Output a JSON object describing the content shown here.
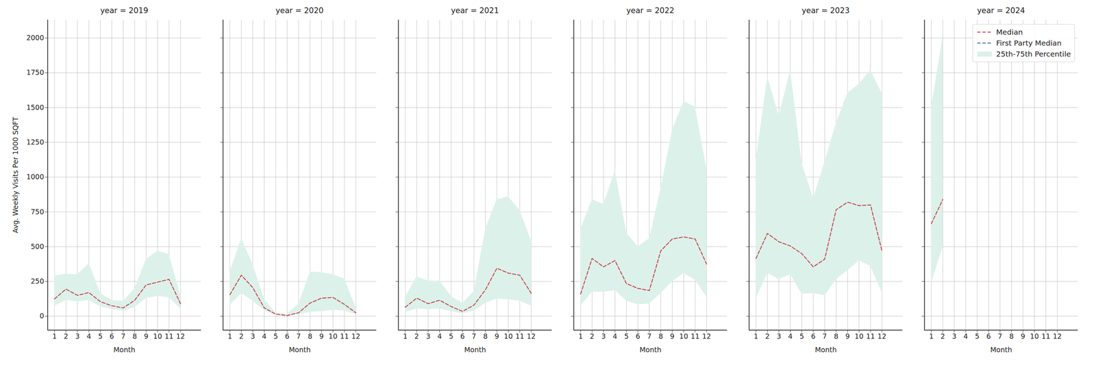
{
  "chart_data": [
    {
      "type": "line",
      "title": "year = 2019",
      "x_label": "Month",
      "y_label": "Avg. Weekly Visits Per 1000 SQFT",
      "x": [
        1,
        2,
        3,
        4,
        5,
        6,
        7,
        8,
        9,
        10,
        11,
        12
      ],
      "xlim": [
        0.4,
        13.8
      ],
      "xticks": [
        1,
        2,
        3,
        4,
        5,
        6,
        7,
        8,
        9,
        10,
        11,
        12
      ],
      "ylim": [
        -100,
        2130
      ],
      "yticks": [
        0,
        250,
        500,
        750,
        1000,
        1250,
        1500,
        1750,
        2000
      ],
      "grid": true,
      "series": [
        {
          "name": "Median",
          "color": "#c44e52",
          "line_style": "dashed",
          "values": [
            125,
            195,
            150,
            170,
            105,
            75,
            60,
            115,
            225,
            245,
            265,
            90
          ]
        },
        {
          "name": "First Party Median",
          "color": "#4c72b0",
          "line_style": "dashed",
          "values": [
            null,
            null,
            null,
            null,
            null,
            null,
            null,
            null,
            null,
            null,
            null,
            null
          ]
        },
        {
          "name": "25th-75th Percentile",
          "type": "area",
          "color": "#ddf1eb",
          "low": [
            75,
            115,
            105,
            115,
            70,
            50,
            40,
            65,
            130,
            145,
            135,
            55
          ],
          "high": [
            290,
            305,
            300,
            380,
            165,
            115,
            110,
            200,
            410,
            470,
            445,
            150
          ]
        }
      ]
    },
    {
      "type": "line",
      "title": "year = 2020",
      "x_label": "Month",
      "tick_labels": "x",
      "x": [
        1,
        2,
        3,
        4,
        5,
        6,
        7,
        8,
        9,
        10,
        11,
        12
      ],
      "xlim": [
        0.4,
        13.8
      ],
      "xticks": [
        1,
        2,
        3,
        4,
        5,
        6,
        7,
        8,
        9,
        10,
        11,
        12
      ],
      "ylim": [
        -100,
        2130
      ],
      "yticks": [
        0,
        250,
        500,
        750,
        1000,
        1250,
        1500,
        1750,
        2000
      ],
      "grid": true,
      "series": [
        {
          "name": "Median",
          "color": "#c44e52",
          "line_style": "dashed",
          "values": [
            155,
            295,
            205,
            60,
            15,
            5,
            25,
            95,
            130,
            135,
            85,
            25
          ]
        },
        {
          "name": "First Party Median",
          "color": "#4c72b0",
          "line_style": "dashed",
          "values": [
            null,
            null,
            null,
            null,
            null,
            null,
            null,
            null,
            null,
            null,
            null,
            null
          ]
        },
        {
          "name": "25th-75th Percentile",
          "type": "area",
          "color": "#ddf1eb",
          "low": [
            80,
            165,
            110,
            40,
            10,
            3,
            15,
            30,
            35,
            45,
            40,
            15
          ],
          "high": [
            320,
            560,
            370,
            120,
            25,
            15,
            90,
            320,
            315,
            300,
            270,
            60
          ]
        }
      ]
    },
    {
      "type": "line",
      "title": "year = 2021",
      "x_label": "Month",
      "tick_labels": "x",
      "x": [
        1,
        2,
        3,
        4,
        5,
        6,
        7,
        8,
        9,
        10,
        11,
        12
      ],
      "xlim": [
        0.4,
        13.8
      ],
      "xticks": [
        1,
        2,
        3,
        4,
        5,
        6,
        7,
        8,
        9,
        10,
        11,
        12
      ],
      "ylim": [
        -100,
        2130
      ],
      "yticks": [
        0,
        250,
        500,
        750,
        1000,
        1250,
        1500,
        1750,
        2000
      ],
      "grid": true,
      "series": [
        {
          "name": "Median",
          "color": "#c44e52",
          "line_style": "dashed",
          "values": [
            65,
            130,
            90,
            115,
            70,
            35,
            80,
            190,
            345,
            310,
            295,
            165
          ]
        },
        {
          "name": "First Party Median",
          "color": "#4c72b0",
          "line_style": "dashed",
          "values": [
            null,
            null,
            null,
            null,
            null,
            null,
            null,
            null,
            null,
            null,
            null,
            null
          ]
        },
        {
          "name": "25th-75th Percentile",
          "type": "area",
          "color": "#ddf1eb",
          "low": [
            30,
            55,
            50,
            55,
            35,
            20,
            40,
            95,
            125,
            120,
            110,
            75
          ],
          "high": [
            140,
            285,
            255,
            255,
            145,
            95,
            180,
            630,
            840,
            860,
            760,
            540
          ]
        }
      ]
    },
    {
      "type": "line",
      "title": "year = 2022",
      "x_label": "Month",
      "tick_labels": "x",
      "x": [
        1,
        2,
        3,
        4,
        5,
        6,
        7,
        8,
        9,
        10,
        11,
        12
      ],
      "xlim": [
        0.4,
        13.8
      ],
      "xticks": [
        1,
        2,
        3,
        4,
        5,
        6,
        7,
        8,
        9,
        10,
        11,
        12
      ],
      "ylim": [
        -100,
        2130
      ],
      "yticks": [
        0,
        250,
        500,
        750,
        1000,
        1250,
        1500,
        1750,
        2000
      ],
      "grid": true,
      "series": [
        {
          "name": "Median",
          "color": "#c44e52",
          "line_style": "dashed",
          "values": [
            160,
            415,
            355,
            400,
            235,
            200,
            185,
            470,
            555,
            570,
            555,
            375
          ]
        },
        {
          "name": "First Party Median",
          "color": "#4c72b0",
          "line_style": "dashed",
          "values": [
            null,
            null,
            null,
            null,
            null,
            null,
            null,
            null,
            null,
            null,
            null,
            null
          ]
        },
        {
          "name": "25th-75th Percentile",
          "type": "area",
          "color": "#ddf1eb",
          "low": [
            75,
            175,
            175,
            185,
            110,
            85,
            90,
            165,
            250,
            310,
            260,
            140
          ],
          "high": [
            630,
            840,
            805,
            1050,
            600,
            500,
            560,
            920,
            1340,
            1545,
            1505,
            1060
          ]
        }
      ]
    },
    {
      "type": "line",
      "title": "year = 2023",
      "x_label": "Month",
      "tick_labels": "x",
      "x": [
        1,
        2,
        3,
        4,
        5,
        6,
        7,
        8,
        9,
        10,
        11,
        12
      ],
      "xlim": [
        0.4,
        13.8
      ],
      "xticks": [
        1,
        2,
        3,
        4,
        5,
        6,
        7,
        8,
        9,
        10,
        11,
        12
      ],
      "ylim": [
        -100,
        2130
      ],
      "yticks": [
        0,
        250,
        500,
        750,
        1000,
        1250,
        1500,
        1750,
        2000
      ],
      "grid": true,
      "series": [
        {
          "name": "Median",
          "color": "#c44e52",
          "line_style": "dashed",
          "values": [
            415,
            595,
            535,
            505,
            450,
            355,
            410,
            765,
            820,
            795,
            800,
            470
          ]
        },
        {
          "name": "First Party Median",
          "color": "#4c72b0",
          "line_style": "dashed",
          "values": [
            null,
            null,
            null,
            null,
            null,
            null,
            null,
            null,
            null,
            null,
            null,
            null
          ]
        },
        {
          "name": "25th-75th Percentile",
          "type": "area",
          "color": "#ddf1eb",
          "low": [
            130,
            310,
            265,
            300,
            160,
            165,
            150,
            265,
            330,
            400,
            360,
            170
          ],
          "high": [
            1130,
            1720,
            1440,
            1770,
            1100,
            850,
            1110,
            1390,
            1605,
            1670,
            1770,
            1600
          ]
        }
      ]
    },
    {
      "type": "line",
      "title": "year = 2024",
      "x_label": "Month",
      "tick_labels": "x",
      "legend": "upper right",
      "x": [
        1,
        2,
        3,
        4,
        5,
        6,
        7,
        8,
        9,
        10,
        11,
        12
      ],
      "xlim": [
        0.4,
        13.8
      ],
      "xticks": [
        1,
        2,
        3,
        4,
        5,
        6,
        7,
        8,
        9,
        10,
        11,
        12
      ],
      "ylim": [
        -100,
        2130
      ],
      "yticks": [
        0,
        250,
        500,
        750,
        1000,
        1250,
        1500,
        1750,
        2000
      ],
      "grid": true,
      "series": [
        {
          "name": "Median",
          "color": "#c44e52",
          "line_style": "dashed",
          "values": [
            665,
            840,
            null,
            null,
            null,
            null,
            null,
            null,
            null,
            null,
            null,
            null
          ]
        },
        {
          "name": "First Party Median",
          "color": "#4c72b0",
          "line_style": "dashed",
          "values": [
            null,
            null,
            null,
            null,
            null,
            null,
            null,
            null,
            null,
            null,
            null,
            null
          ]
        },
        {
          "name": "25th-75th Percentile",
          "type": "area",
          "color": "#ddf1eb",
          "low": [
            240,
            500,
            null,
            null,
            null,
            null,
            null,
            null,
            null,
            null,
            null,
            null
          ],
          "high": [
            1510,
            2010,
            null,
            null,
            null,
            null,
            null,
            null,
            null,
            null,
            null,
            null
          ]
        }
      ]
    }
  ]
}
